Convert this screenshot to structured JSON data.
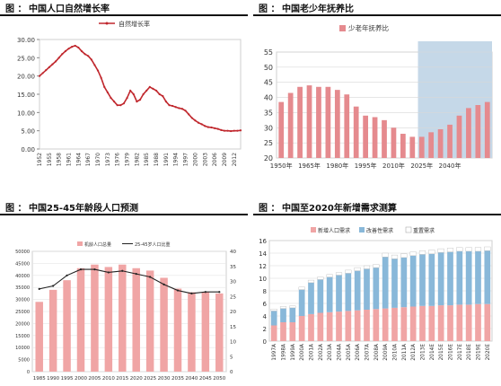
{
  "panels": [
    {
      "prefix": "图 ：",
      "title": "中国人口自然增长率"
    },
    {
      "prefix": "图 ：",
      "title": "中国老少年抚养比"
    },
    {
      "prefix": "图 ：",
      "title": "中国25-45年龄段人口预测"
    },
    {
      "prefix": "图 ：",
      "title": "中国至2020年新增需求测算"
    }
  ],
  "colors": {
    "red": "#c0272d",
    "pink": "#f0a5a5",
    "blue": "#89b8d9",
    "shade": "#c5d8e8",
    "grid": "#d8d8d8"
  },
  "chart_data": [
    {
      "type": "line",
      "legend": [
        "自然增长率"
      ],
      "legend_position": "top-center",
      "ylim": [
        0,
        30
      ],
      "yticks": [
        "0.00",
        "5.00",
        "10.00",
        "15.00",
        "20.00",
        "25.00",
        "30.00"
      ],
      "xticks": [
        "1952",
        "1955",
        "1958",
        "1961",
        "1964",
        "1967",
        "1970",
        "1973",
        "1976",
        "1979",
        "1982",
        "1985",
        "1988",
        "1991",
        "1994",
        "1997",
        "2000",
        "2003",
        "2006",
        "2009",
        "2012"
      ],
      "x": [
        1952,
        1953,
        1954,
        1955,
        1956,
        1957,
        1958,
        1959,
        1960,
        1961,
        1962,
        1963,
        1964,
        1965,
        1966,
        1967,
        1968,
        1969,
        1970,
        1971,
        1972,
        1973,
        1974,
        1975,
        1976,
        1977,
        1978,
        1979,
        1980,
        1981,
        1982,
        1983,
        1984,
        1985,
        1986,
        1987,
        1988,
        1989,
        1990,
        1991,
        1992,
        1993,
        1994,
        1995,
        1996,
        1997,
        1998,
        1999,
        2000,
        2001,
        2002,
        2003,
        2004,
        2005,
        2006,
        2007,
        2008,
        2009,
        2010,
        2011,
        2012,
        2013,
        2014
      ],
      "y": [
        20,
        20.8,
        21.6,
        22.4,
        23.2,
        24,
        25,
        26,
        26.8,
        27.5,
        28,
        28.3,
        27.8,
        26.8,
        26,
        25.5,
        24.5,
        23,
        21.5,
        19.5,
        17,
        15.5,
        14,
        13,
        12,
        12,
        12.5,
        14,
        16,
        15,
        13,
        13.5,
        15,
        16,
        17,
        16.5,
        16,
        15,
        14.5,
        13,
        12,
        11.8,
        11.5,
        11.2,
        11,
        10.5,
        9.5,
        8.5,
        7.8,
        7.2,
        6.8,
        6.3,
        6,
        5.9,
        5.7,
        5.5,
        5.2,
        5,
        5,
        4.9,
        5,
        5,
        5.1
      ]
    },
    {
      "type": "bar",
      "legend": [
        "少老年抚养比"
      ],
      "legend_position": "top-left",
      "ylim": [
        20,
        55
      ],
      "yticks": [
        "20",
        "25",
        "30",
        "35",
        "40",
        "45",
        "50",
        "55"
      ],
      "xticks": [
        "1950年",
        "1965年",
        "1980年",
        "1995年",
        "2010年",
        "2025年",
        "2040年"
      ],
      "shaded_projection": true,
      "values": [
        38.5,
        41.5,
        43.5,
        44,
        43.5,
        43.5,
        42.5,
        41,
        37,
        34,
        33.5,
        32.5,
        30,
        28,
        27,
        27,
        28.5,
        29.5,
        31,
        34,
        36.5,
        37.5,
        38.5
      ]
    },
    {
      "type": "bar",
      "legend": [
        "机龄人口总量",
        "25-45岁人口比重"
      ],
      "legend_position": "top-center",
      "ylim": [
        0,
        50000
      ],
      "y2lim": [
        0,
        40
      ],
      "yticks": [
        "0",
        "5000",
        "10000",
        "15000",
        "20000",
        "25000",
        "30000",
        "35000",
        "40000",
        "45000",
        "50000"
      ],
      "y2ticks": [
        "0",
        "5",
        "10",
        "15",
        "20",
        "25",
        "30",
        "35",
        "40"
      ],
      "categories": [
        "1985",
        "1990",
        "1995",
        "2000",
        "2005",
        "2010",
        "2015",
        "2020",
        "2025",
        "2030",
        "2035",
        "2040",
        "2045",
        "2050"
      ],
      "series": [
        {
          "name": "机龄人口总量",
          "values": [
            29000,
            34000,
            38000,
            43000,
            44500,
            43500,
            44500,
            43000,
            42000,
            39000,
            34500,
            33000,
            33000,
            32500
          ]
        },
        {
          "name": "25-45岁人口比重",
          "values": [
            27.5,
            28.5,
            32,
            34,
            34,
            33,
            33.5,
            32.5,
            31.5,
            29,
            27,
            26,
            26.5,
            26.5
          ]
        }
      ]
    },
    {
      "type": "bar",
      "stacked": true,
      "legend": [
        "新增人口需求",
        "改善性需求",
        "重置需求"
      ],
      "legend_position": "top-center",
      "ylim": [
        0,
        16
      ],
      "yticks": [
        "0",
        "2",
        "4",
        "6",
        "8",
        "10",
        "12",
        "14",
        "16"
      ],
      "categories": [
        "1997A",
        "1998A",
        "1999A",
        "2000A",
        "2001A",
        "2002A",
        "2003A",
        "2004A",
        "2005A",
        "2006A",
        "2007A",
        "2008A",
        "2009A",
        "2010A",
        "2011A",
        "2012A",
        "2013E",
        "2014E",
        "2015E",
        "2016E",
        "2017E",
        "2018E",
        "2019E",
        "2020E"
      ],
      "series": [
        {
          "name": "新增人口需求",
          "values": [
            2.5,
            3,
            3,
            4,
            4.3,
            4.5,
            4.6,
            4.7,
            4.8,
            4.9,
            5,
            5.1,
            5.2,
            5.3,
            5.4,
            5.5,
            5.6,
            5.6,
            5.7,
            5.7,
            5.8,
            5.8,
            5.9,
            5.9
          ]
        },
        {
          "name": "改善性需求",
          "values": [
            2.3,
            2.2,
            2.3,
            4.2,
            5,
            5.3,
            5.6,
            5.8,
            6,
            6.3,
            6.5,
            6.6,
            8.2,
            7.8,
            7.9,
            8.1,
            8.2,
            8.3,
            8.4,
            8.5,
            8.5,
            8.5,
            8.4,
            8.5
          ]
        },
        {
          "name": "重置需求",
          "values": [
            0.3,
            0.3,
            0.3,
            0.4,
            0.4,
            0.4,
            0.4,
            0.4,
            0.5,
            0.5,
            0.5,
            0.5,
            0.6,
            0.6,
            0.6,
            0.6,
            0.6,
            0.6,
            0.6,
            0.6,
            0.6,
            0.6,
            0.6,
            0.6
          ]
        }
      ]
    }
  ]
}
